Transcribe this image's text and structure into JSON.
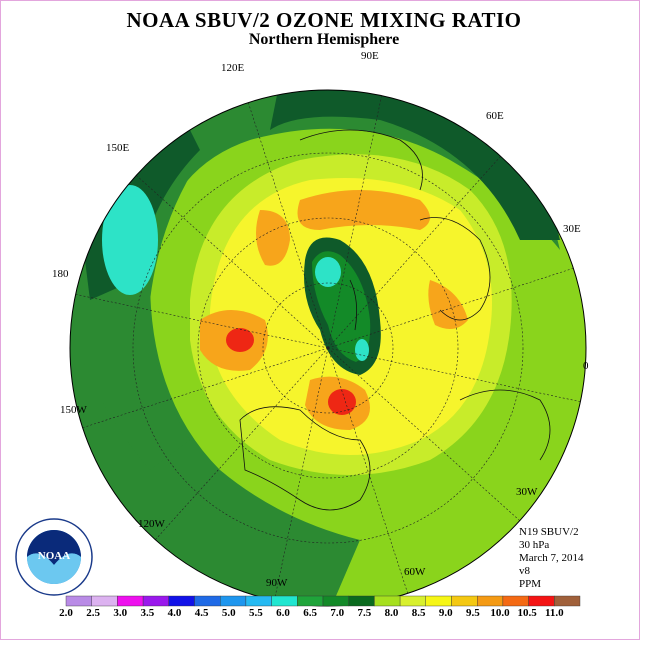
{
  "title": "NOAA SBUV/2 OZONE MIXING RATIO",
  "subtitle": "Northern Hemisphere",
  "longitude_labels": [
    "90E",
    "60E",
    "30E",
    "0",
    "30W",
    "60W",
    "90W",
    "120W",
    "150W",
    "180",
    "150E",
    "120E"
  ],
  "info": {
    "satellite": "N19 SBUV/2",
    "level": "30 hPa",
    "date": "March 7, 2014",
    "version": "v8",
    "units": "PPM"
  },
  "logo": {
    "text": "NOAA"
  },
  "colorbar": {
    "labels": [
      "2.0",
      "2.5",
      "3.0",
      "3.5",
      "4.0",
      "4.5",
      "5.0",
      "5.5",
      "6.0",
      "6.5",
      "7.0",
      "7.5",
      "8.0",
      "8.5",
      "9.0",
      "9.5",
      "10.0",
      "10.5",
      "11.0"
    ],
    "colors": [
      "#b98be6",
      "#dcb2f0",
      "#ee10ee",
      "#9a18ec",
      "#1212e8",
      "#1f6ae6",
      "#1e96ee",
      "#26baf2",
      "#20e6d0",
      "#1fa43a",
      "#138a28",
      "#0a6a1e",
      "#a6e01e",
      "#d8f02e",
      "#f6f616",
      "#f4c812",
      "#f49a14",
      "#f46a14",
      "#f41414",
      "#a0603a"
    ]
  },
  "map": {
    "projection": "north-polar-stereographic",
    "variable": "ozone mixing ratio",
    "level_hpa": 30,
    "colors": {
      "ocean_bg": "#8ad41c",
      "mid_green": "#2c8a32",
      "dark_green": "#0f5a2a",
      "cyan": "#2de3c7",
      "lime": "#c8ec2a",
      "yellow": "#f6f52c",
      "orange": "#f7a51b",
      "red": "#ee2714"
    }
  }
}
